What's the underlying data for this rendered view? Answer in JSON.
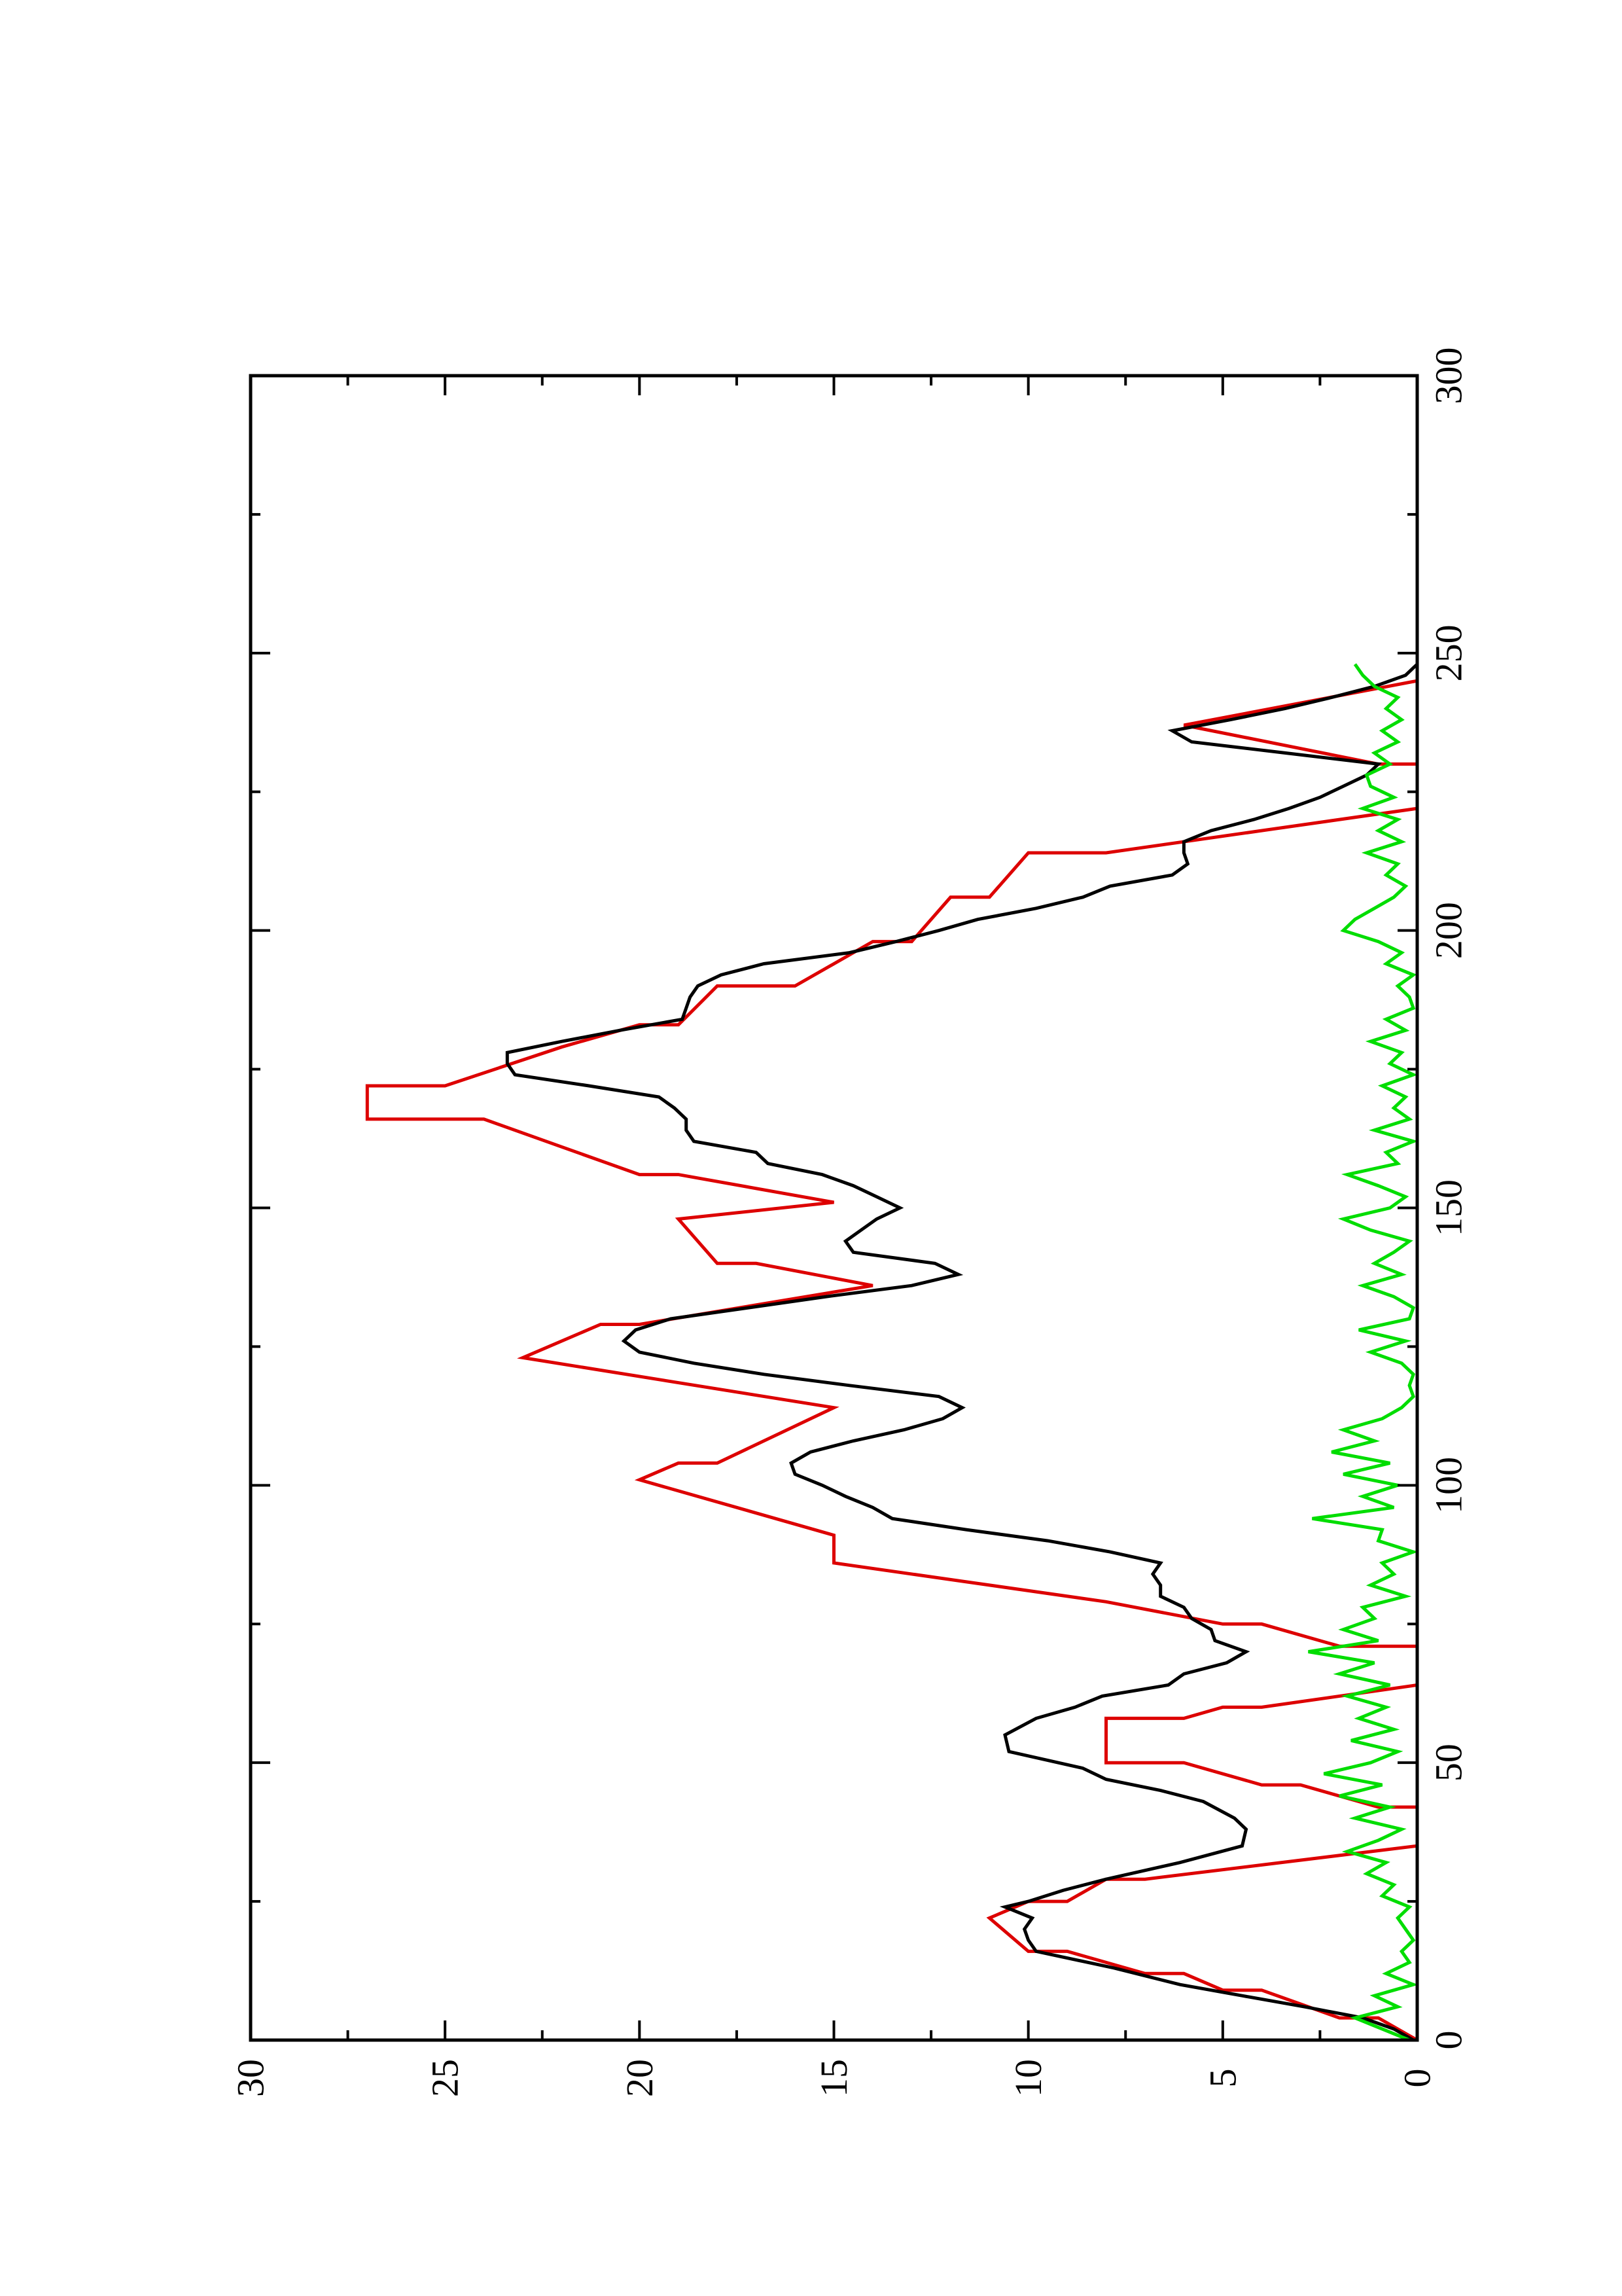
{
  "chart_data": {
    "type": "line",
    "orientation": "rotated-90-ccw",
    "title": "",
    "xlabel": "",
    "ylabel": "",
    "xlim": [
      0,
      300
    ],
    "ylim": [
      0,
      30
    ],
    "x_ticks": [
      "0",
      "50",
      "100",
      "150",
      "200",
      "250",
      "300"
    ],
    "y_ticks": [
      "0",
      "5",
      "10",
      "15",
      "20",
      "25",
      "30"
    ],
    "grid": false,
    "legend": "none",
    "series": [
      {
        "color": "#dd0000",
        "x": [
          0,
          4,
          4,
          9,
          9,
          12,
          12,
          16,
          16,
          22,
          22,
          25,
          25,
          29,
          29,
          35,
          42,
          42,
          46,
          46,
          50,
          50,
          58,
          58,
          60,
          60,
          64,
          71,
          71,
          75,
          75,
          79,
          79,
          86,
          86,
          91,
          91,
          101,
          101,
          104,
          104,
          114,
          114,
          123,
          123,
          129,
          129,
          136,
          136,
          140,
          140,
          148,
          148,
          151,
          151,
          156,
          156,
          161,
          161,
          166,
          166,
          172,
          172,
          179,
          179,
          183,
          183,
          190,
          190,
          198,
          198,
          206,
          206,
          214,
          214,
          222,
          230,
          230,
          237,
          237,
          245
        ],
        "y": [
          0,
          1,
          2,
          4,
          5,
          6,
          7,
          9,
          10,
          11,
          11,
          10,
          9,
          8,
          7,
          0,
          0,
          1,
          3,
          4,
          6,
          8,
          8,
          6,
          5,
          4,
          0,
          0,
          2,
          4,
          5,
          8,
          8,
          15,
          15,
          15,
          15,
          20,
          20,
          19,
          18,
          15,
          15,
          23,
          23,
          21,
          20,
          14,
          14,
          17,
          18,
          19,
          19,
          15,
          15,
          19,
          20,
          22,
          22,
          24,
          27,
          27,
          25,
          22,
          22,
          20,
          19,
          18,
          16,
          14,
          13,
          12,
          11,
          10,
          8,
          0,
          0,
          1,
          6,
          6,
          0
        ]
      },
      {
        "color": "#000000",
        "x": [
          0,
          2,
          4,
          6,
          8,
          10,
          13,
          16,
          18,
          20,
          22,
          24,
          25,
          27,
          29,
          32,
          35,
          38,
          40,
          43,
          45,
          47,
          49,
          52,
          55,
          58,
          60,
          62,
          64,
          66,
          68,
          70,
          72,
          74,
          76,
          78,
          80,
          82,
          84,
          86,
          88,
          90,
          92,
          94,
          96,
          98,
          100,
          102,
          104,
          106,
          108,
          110,
          112,
          114,
          116,
          118,
          120,
          122,
          124,
          126,
          128,
          130,
          132,
          134,
          136,
          138,
          140,
          142,
          144,
          146,
          148,
          150,
          152,
          154,
          156,
          158,
          160,
          162,
          164,
          166,
          168,
          170,
          172,
          174,
          176,
          178,
          180,
          182,
          184,
          186,
          188,
          190,
          192,
          194,
          196,
          198,
          200,
          202,
          204,
          206,
          208,
          210,
          212,
          214,
          216,
          218,
          220,
          222,
          224,
          226,
          228,
          230,
          232,
          234,
          236,
          238,
          240,
          242,
          244,
          246,
          248
        ],
        "y": [
          0.1,
          0.6,
          1.4,
          2.9,
          4.5,
          6.1,
          7.8,
          9.8,
          10.0,
          10.1,
          9.9,
          10.6,
          10.0,
          9.1,
          8.0,
          6.1,
          4.5,
          4.4,
          4.7,
          5.5,
          6.6,
          8.0,
          8.6,
          10.5,
          10.6,
          9.8,
          8.8,
          8.1,
          6.4,
          6.0,
          4.9,
          4.4,
          5.2,
          5.3,
          5.8,
          6.0,
          6.6,
          6.6,
          6.8,
          6.6,
          7.9,
          9.5,
          11.6,
          13.5,
          14.0,
          14.7,
          15.3,
          16.0,
          16.1,
          15.6,
          14.5,
          13.2,
          12.2,
          11.7,
          12.3,
          14.6,
          16.8,
          18.6,
          20.0,
          20.4,
          20.1,
          19.2,
          17.2,
          15.2,
          13.0,
          11.8,
          12.4,
          14.5,
          14.7,
          14.3,
          13.9,
          13.3,
          13.9,
          14.5,
          15.3,
          16.7,
          17.0,
          18.6,
          18.8,
          18.8,
          19.1,
          19.5,
          21.3,
          23.2,
          23.4,
          23.4,
          22.0,
          20.5,
          18.9,
          18.8,
          18.7,
          18.5,
          17.9,
          16.8,
          14.6,
          13.4,
          12.3,
          11.3,
          9.8,
          8.6,
          7.9,
          6.3,
          5.9,
          6.0,
          6.0,
          5.3,
          4.2,
          3.3,
          2.5,
          1.9,
          1.3,
          1.0,
          3.4,
          5.8,
          6.3,
          4.8,
          3.4,
          2.2,
          1.1,
          0.3,
          0.0
        ]
      },
      {
        "color": "#00dd00",
        "x": [
          0,
          2,
          4,
          6,
          8,
          10,
          12,
          14,
          16,
          18,
          20,
          22,
          24,
          26,
          28,
          30,
          32,
          34,
          36,
          38,
          40,
          42,
          44,
          46,
          48,
          50,
          52,
          54,
          56,
          58,
          60,
          62,
          64,
          66,
          68,
          70,
          72,
          74,
          76,
          78,
          80,
          82,
          84,
          86,
          88,
          90,
          92,
          94,
          96,
          98,
          100,
          102,
          104,
          106,
          108,
          110,
          112,
          114,
          116,
          118,
          120,
          122,
          124,
          126,
          128,
          130,
          132,
          134,
          136,
          138,
          140,
          142,
          144,
          146,
          148,
          150,
          152,
          154,
          156,
          158,
          160,
          162,
          164,
          166,
          168,
          170,
          172,
          174,
          176,
          178,
          180,
          182,
          184,
          186,
          188,
          190,
          192,
          194,
          196,
          198,
          200,
          202,
          204,
          206,
          208,
          210,
          212,
          214,
          216,
          218,
          220,
          222,
          224,
          226,
          228,
          230,
          232,
          234,
          236,
          238,
          240,
          242,
          244,
          246,
          248
        ],
        "y": [
          0.2,
          0.9,
          1.6,
          0.5,
          1.1,
          0.1,
          0.8,
          0.2,
          0.4,
          0.1,
          0.3,
          0.5,
          0.2,
          0.9,
          0.6,
          1.3,
          0.8,
          1.8,
          1.0,
          0.4,
          1.6,
          0.7,
          2.0,
          0.9,
          2.4,
          1.2,
          0.5,
          1.7,
          0.6,
          1.5,
          0.8,
          1.8,
          0.7,
          2.0,
          1.1,
          2.8,
          1.0,
          1.9,
          1.1,
          1.4,
          0.3,
          1.2,
          0.6,
          0.9,
          0.1,
          1.0,
          0.9,
          2.7,
          0.6,
          1.4,
          0.5,
          1.9,
          0.7,
          2.2,
          1.1,
          1.9,
          0.9,
          0.4,
          0.1,
          0.2,
          0.1,
          0.4,
          1.2,
          0.3,
          1.5,
          0.2,
          0.1,
          0.6,
          1.4,
          0.4,
          1.1,
          0.6,
          0.2,
          1.2,
          1.9,
          0.7,
          0.3,
          1.0,
          1.8,
          0.5,
          0.8,
          0.1,
          1.1,
          0.2,
          0.6,
          0.3,
          0.9,
          0.1,
          0.7,
          0.4,
          1.2,
          0.3,
          0.8,
          0.1,
          0.2,
          0.5,
          0.1,
          0.8,
          0.4,
          1.0,
          1.9,
          1.6,
          1.1,
          0.6,
          0.3,
          0.8,
          0.5,
          1.3,
          0.4,
          1.0,
          0.5,
          1.4,
          0.6,
          1.2,
          1.3,
          0.7,
          1.1,
          0.5,
          0.9,
          0.4,
          0.8,
          0.5,
          1.1,
          1.4,
          1.6
        ]
      }
    ]
  }
}
